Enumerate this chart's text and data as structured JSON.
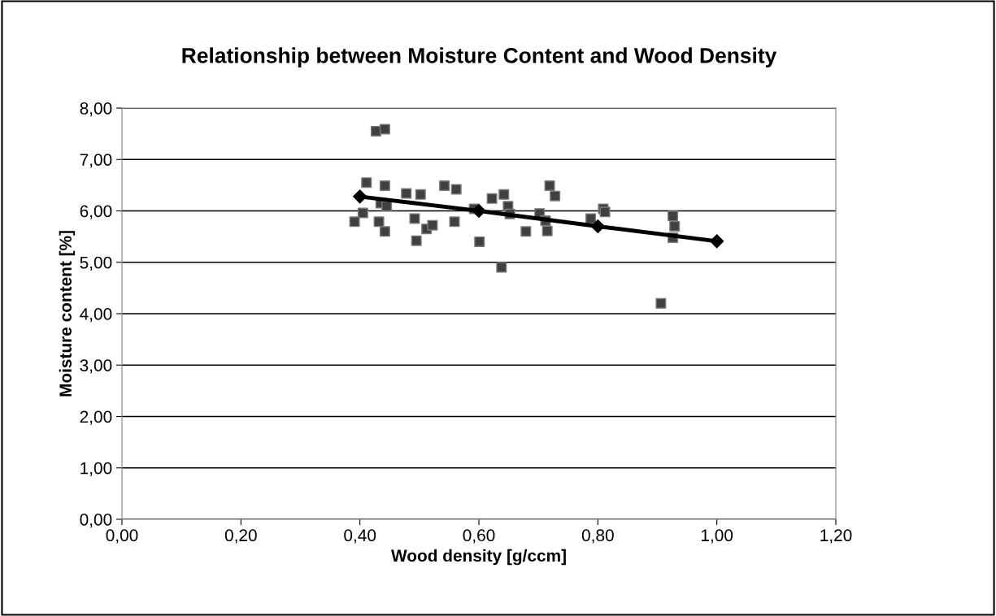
{
  "chart_data": {
    "type": "scatter",
    "title": "Relationship between Moisture Content and Wood Density",
    "xlabel": "Wood density [g/ccm]",
    "ylabel": "Moisture content [%]",
    "xlim": [
      0,
      1.2
    ],
    "ylim": [
      0,
      8
    ],
    "xticks": [
      {
        "value": 0,
        "label": "0,00"
      },
      {
        "value": 0.2,
        "label": "0,20"
      },
      {
        "value": 0.4,
        "label": "0,40"
      },
      {
        "value": 0.6,
        "label": "0,60"
      },
      {
        "value": 0.8,
        "label": "0,80"
      },
      {
        "value": 1.0,
        "label": "1,00"
      },
      {
        "value": 1.2,
        "label": "1,20"
      }
    ],
    "yticks": [
      {
        "value": 0,
        "label": "0,00"
      },
      {
        "value": 1,
        "label": "1,00"
      },
      {
        "value": 2,
        "label": "2,00"
      },
      {
        "value": 3,
        "label": "3,00"
      },
      {
        "value": 4,
        "label": "4,00"
      },
      {
        "value": 5,
        "label": "5,00"
      },
      {
        "value": 6,
        "label": "6,00"
      },
      {
        "value": 7,
        "label": "7,00"
      },
      {
        "value": 8,
        "label": "8,00"
      }
    ],
    "grid": "y",
    "legend": false,
    "series": [
      {
        "marker": "square",
        "color": "#404040",
        "x": [
          0.427,
          0.442,
          0.411,
          0.442,
          0.478,
          0.502,
          0.542,
          0.562,
          0.435,
          0.445,
          0.405,
          0.391,
          0.432,
          0.442,
          0.492,
          0.495,
          0.512,
          0.522,
          0.559,
          0.592,
          0.601,
          0.622,
          0.642,
          0.649,
          0.652,
          0.638,
          0.679,
          0.702,
          0.712,
          0.715,
          0.719,
          0.728,
          0.788,
          0.809,
          0.812,
          0.926,
          0.929,
          0.926,
          0.906
        ],
        "values": [
          7.55,
          7.59,
          6.55,
          6.49,
          6.34,
          6.32,
          6.49,
          6.42,
          6.15,
          6.09,
          5.96,
          5.79,
          5.79,
          5.6,
          5.85,
          5.42,
          5.65,
          5.72,
          5.79,
          6.04,
          5.4,
          6.24,
          6.32,
          6.09,
          5.94,
          4.9,
          5.6,
          5.95,
          5.81,
          5.61,
          6.49,
          6.29,
          5.85,
          6.04,
          5.98,
          5.9,
          5.7,
          5.48,
          4.2
        ]
      },
      {
        "type": "line",
        "marker": "diamond",
        "line_style": "solid",
        "color": "#000000",
        "x": [
          0.4,
          0.6,
          0.8,
          1.0
        ],
        "values": [
          6.28,
          6.0,
          5.7,
          5.41
        ]
      }
    ]
  }
}
